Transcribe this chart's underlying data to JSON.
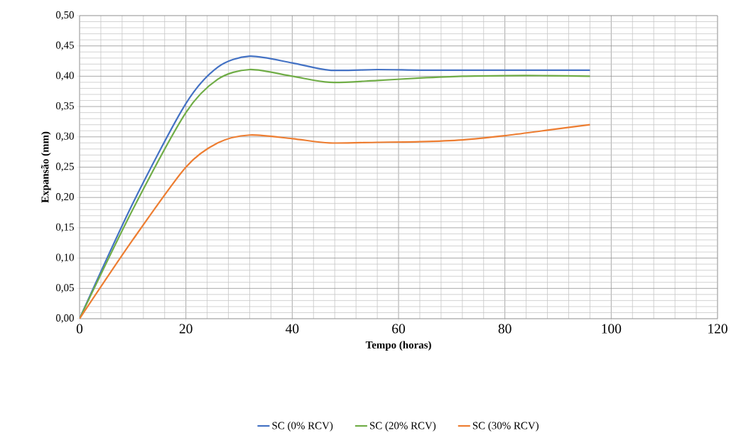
{
  "chart_data": {
    "type": "line",
    "xlabel": "Tempo (horas)",
    "ylabel": "Expansão (mm)",
    "x": [
      0,
      10,
      20,
      26,
      32,
      40,
      47,
      56,
      64,
      72,
      80,
      88,
      96
    ],
    "series": [
      {
        "name": "SC (0% RCV)",
        "color": "#4472c4",
        "values": [
          0,
          0.19,
          0.355,
          0.415,
          0.433,
          0.422,
          0.41,
          0.411,
          0.41,
          0.41,
          0.41,
          0.41,
          0.41
        ]
      },
      {
        "name": "SC (20% RCV)",
        "color": "#70ad47",
        "values": [
          0,
          0.18,
          0.34,
          0.395,
          0.411,
          0.4,
          0.39,
          0.393,
          0.397,
          0.4,
          0.401,
          0.401,
          0.4
        ]
      },
      {
        "name": "SC (30% RCV)",
        "color": "#ed7d31",
        "values": [
          0,
          0.13,
          0.25,
          0.29,
          0.303,
          0.297,
          0.29,
          0.291,
          0.292,
          0.295,
          0.302,
          0.311,
          0.32
        ]
      }
    ],
    "xlim": [
      0,
      120
    ],
    "xticks": [
      0,
      20,
      40,
      60,
      80,
      100,
      120
    ],
    "ylim": [
      0,
      0.5
    ],
    "yticks": [
      {
        "value": 0,
        "label": "0,00"
      },
      {
        "value": 0.05,
        "label": "0,05"
      },
      {
        "value": 0.1,
        "label": "0,10"
      },
      {
        "value": 0.15,
        "label": "0,15"
      },
      {
        "value": 0.2,
        "label": "0,20"
      },
      {
        "value": 0.25,
        "label": "0,25"
      },
      {
        "value": 0.3,
        "label": "0,30"
      },
      {
        "value": 0.35,
        "label": "0,35"
      },
      {
        "value": 0.4,
        "label": "0,40"
      },
      {
        "value": 0.45,
        "label": "0,45"
      },
      {
        "value": 0.5,
        "label": "0,50"
      }
    ],
    "grid": true,
    "legend": "bottom",
    "marker": "none",
    "line_style": "solid"
  }
}
